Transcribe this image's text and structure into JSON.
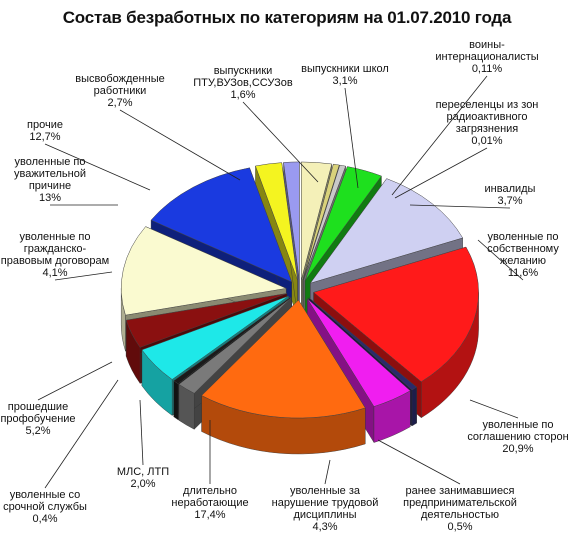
{
  "chart_data": {
    "type": "pie",
    "title": "Состав безработных по категориям на 01.07.2010 года",
    "slices": [
      {
        "label": "выпускники школ",
        "value_text": "3,1%",
        "value": 3.1,
        "color": "#f4f0b8"
      },
      {
        "label": "воины-интернационалисты",
        "value_text": "0,11%",
        "value": 0.11,
        "color": "#d9d27a"
      },
      {
        "label": "переселенцы из зон радиоактивного загрязнения",
        "value_text": "0,01%",
        "value": 0.01,
        "color": "#c9c9c9"
      },
      {
        "label": "инвалиды",
        "value_text": "3,7%",
        "value": 3.7,
        "color": "#1ee01e"
      },
      {
        "label": "уволенные по собственному желанию",
        "value_text": "11,6%",
        "value": 11.6,
        "color": "#cfd0f2"
      },
      {
        "label": "уволенные по соглашению сторон",
        "value_text": "20,9%",
        "value": 20.9,
        "color": "#ff1a1a"
      },
      {
        "label": "ранее занимавшиеся предпринимательской деятельностью",
        "value_text": "0,5%",
        "value": 0.5,
        "color": "#2a2a6a"
      },
      {
        "label": "уволенные за нарушение трудовой дисциплины",
        "value_text": "4,3%",
        "value": 4.3,
        "color": "#f01ef0"
      },
      {
        "label": "длительно неработающие",
        "value_text": "17,4%",
        "value": 17.4,
        "color": "#ff6a10"
      },
      {
        "label": "МЛС, ЛТП",
        "value_text": "2,0%",
        "value": 2.0,
        "color": "#7a7a7a"
      },
      {
        "label": "уволенные со срочной службы",
        "value_text": "0,4%",
        "value": 0.4,
        "color": "#1a1a1a"
      },
      {
        "label": "прошедшие профобучение",
        "value_text": "5,2%",
        "value": 5.2,
        "color": "#1ee8e8"
      },
      {
        "label": "уволенные по гражданско-правовым договорам",
        "value_text": "4,1%",
        "value": 4.1,
        "color": "#8a1010"
      },
      {
        "label": "уволенные по уважительной причине",
        "value_text": "13%",
        "value": 13.0,
        "color": "#fafad0"
      },
      {
        "label": "прочие",
        "value_text": "12,7%",
        "value": 12.7,
        "color": "#1a3ae0"
      },
      {
        "label": "высвобожденные работники",
        "value_text": "2,7%",
        "value": 2.7,
        "color": "#f4f420"
      },
      {
        "label": "выпускники ПТУ,ВУЗов,ССУЗов",
        "value_text": "1,6%",
        "value": 1.6,
        "color": "#9a9af0"
      }
    ],
    "legend": "none"
  }
}
